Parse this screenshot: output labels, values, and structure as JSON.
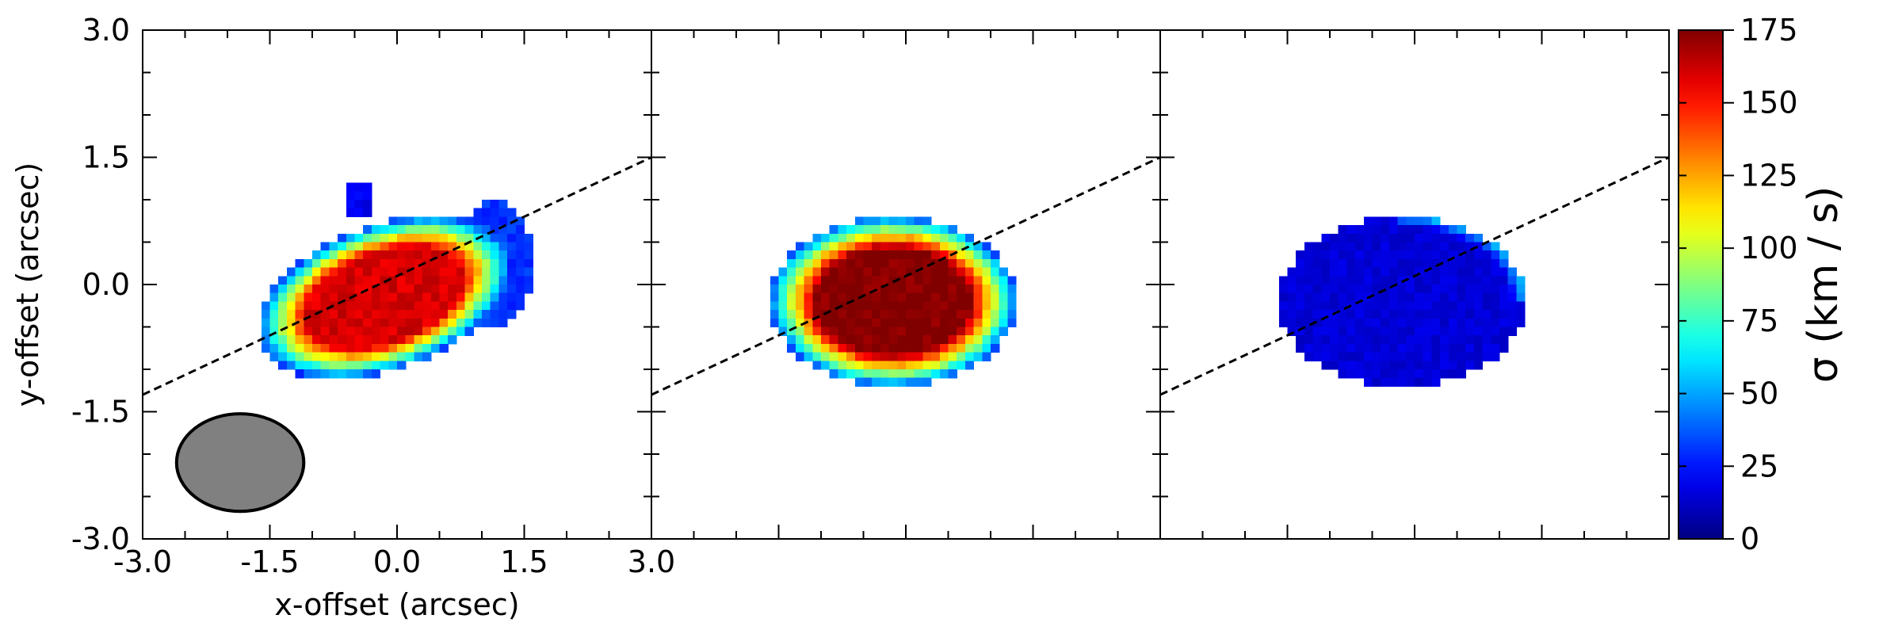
{
  "chart_data": {
    "type": "heatmap",
    "panels": [
      {
        "name": "",
        "xlabel": "x-offset (arcsec)",
        "ylabel": "y-offset (arcsec)",
        "show_tick_labels": true,
        "x_range": [
          -3.0,
          3.0
        ],
        "y_range": [
          -3.0,
          3.0
        ],
        "pixel_size": 0.1,
        "components": [
          {
            "shape": "ellipse",
            "cx": -0.15,
            "cy": -0.15,
            "rx": 1.55,
            "ry": 0.85,
            "angle": 20,
            "value": 160,
            "profile": "ring"
          },
          {
            "shape": "ellipse",
            "cx": 1.15,
            "cy": 0.25,
            "rx": 0.45,
            "ry": 0.75,
            "angle": 0,
            "value": 30,
            "profile": "flat"
          },
          {
            "shape": "ellipse",
            "cx": -0.45,
            "cy": 1.0,
            "rx": 0.2,
            "ry": 0.2,
            "angle": 0,
            "value": 20,
            "profile": "flat"
          }
        ],
        "beam": {
          "x": -1.85,
          "y": -2.1,
          "major": 1.5,
          "minor": 1.15,
          "color": "#808080"
        },
        "major_axis": {
          "points": [
            [
              -3.0,
              -1.3
            ],
            [
              3.0,
              1.5
            ]
          ]
        }
      },
      {
        "name": "",
        "show_tick_labels": false,
        "x_range": [
          -3.0,
          3.0
        ],
        "y_range": [
          -3.0,
          3.0
        ],
        "pixel_size": 0.1,
        "components": [
          {
            "shape": "ellipse",
            "cx": -0.15,
            "cy": -0.2,
            "rx": 1.45,
            "ry": 1.0,
            "angle": 0,
            "value": 175,
            "profile": "ring"
          }
        ],
        "major_axis": {
          "points": [
            [
              -3.0,
              -1.3
            ],
            [
              3.0,
              1.5
            ]
          ]
        }
      },
      {
        "name": "",
        "show_tick_labels": false,
        "x_range": [
          -3.0,
          3.0
        ],
        "y_range": [
          -3.0,
          3.0
        ],
        "pixel_size": 0.1,
        "components": [
          {
            "shape": "ellipse",
            "cx": -0.15,
            "cy": -0.2,
            "rx": 1.45,
            "ry": 1.0,
            "angle": 0,
            "value": 15,
            "profile": "low"
          }
        ],
        "major_axis": {
          "points": [
            [
              -3.0,
              -1.3
            ],
            [
              3.0,
              1.5
            ]
          ]
        }
      }
    ],
    "x_ticks": [
      -3.0,
      -1.5,
      0.0,
      1.5,
      3.0
    ],
    "x_tick_labels": [
      "-3.0",
      "-1.5",
      "0.0",
      "1.5",
      "3.0"
    ],
    "y_ticks": [
      3.0,
      1.5,
      0.0,
      -1.5,
      -3.0
    ],
    "y_tick_labels": [
      "3.0",
      "1.5",
      "0.0",
      "-1.5",
      "-3.0"
    ],
    "colorbar": {
      "label": "σ (km / s)",
      "range": [
        0,
        175
      ],
      "ticks": [
        0,
        25,
        50,
        75,
        100,
        125,
        150,
        175
      ],
      "tick_labels": [
        "0",
        "25",
        "50",
        "75",
        "100",
        "125",
        "150",
        "175"
      ],
      "colormap": "jet"
    },
    "grid": false,
    "legend": "none"
  }
}
